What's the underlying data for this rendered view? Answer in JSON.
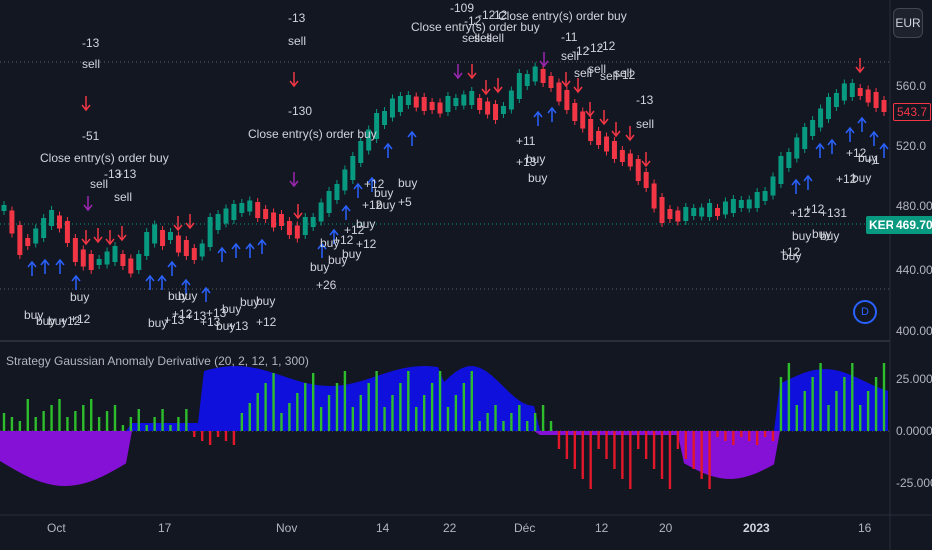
{
  "currency_button": "EUR",
  "indicator_title": "Strategy Gaussian Anomaly Derivative (20, 2, 12, 1, 300)",
  "price_axis": [
    "560.0",
    "520.0",
    "480.00",
    "440.00",
    "400.00"
  ],
  "indicator_axis": [
    "25.000",
    "0.0000",
    "-25.000"
  ],
  "date_axis": [
    "Oct",
    "17",
    "Nov",
    "14",
    "22",
    "Déc",
    "12",
    "20",
    "2023",
    "16"
  ],
  "symbol_tag": "KER",
  "last_price": "469.70",
  "prev_price_tag": "543.7",
  "trade_labels": [
    "-13",
    "sell",
    "-51",
    "Close entry(s) order buy",
    "sell",
    "-13",
    "+13",
    "sell",
    "-13",
    "sell",
    "-130",
    "Close entry(s) order buy",
    "-109",
    "-12",
    "-12",
    "-12",
    "Close entry(s) order buy",
    "Close entry(s) order buy",
    "sell",
    "sell",
    "sell",
    "-11",
    "sell",
    "-12",
    "-12",
    "-12",
    "sell",
    "sell",
    "sell",
    "sell",
    "-12",
    "-13",
    "sell",
    "buy",
    "+12",
    "buy",
    "buy",
    "buy",
    "+12",
    "buy",
    "+13",
    "buy",
    "+12",
    "buy",
    "+13",
    "+13",
    "buy",
    "+13",
    "buy",
    "+13",
    "buy",
    "+12",
    "buy",
    "buy",
    "+26",
    "buy",
    "+12",
    "buy",
    "+12",
    "buy",
    "buy",
    "+12",
    "+12",
    "buy",
    "+12",
    "buy",
    "buy",
    "+5",
    "+11",
    "buy",
    "+13",
    "buy",
    "+12",
    "buy",
    "+12",
    "buy",
    "+131",
    "buy",
    "buy",
    "+12",
    "+12",
    "buy",
    "+12",
    "buy",
    "+1"
  ],
  "colors": {
    "bg": "#131722",
    "up": "#089981",
    "down": "#f23645",
    "buy_arrow": "#2962ff",
    "sell_arrow": "#f23645",
    "close_arrow": "#9c27b0",
    "hist_pos": "#2dbd2d",
    "hist_neg": "#e0182a",
    "area_pos": "#1010e8",
    "area_neg": "#8b10e0",
    "grid": "#363a45"
  }
}
